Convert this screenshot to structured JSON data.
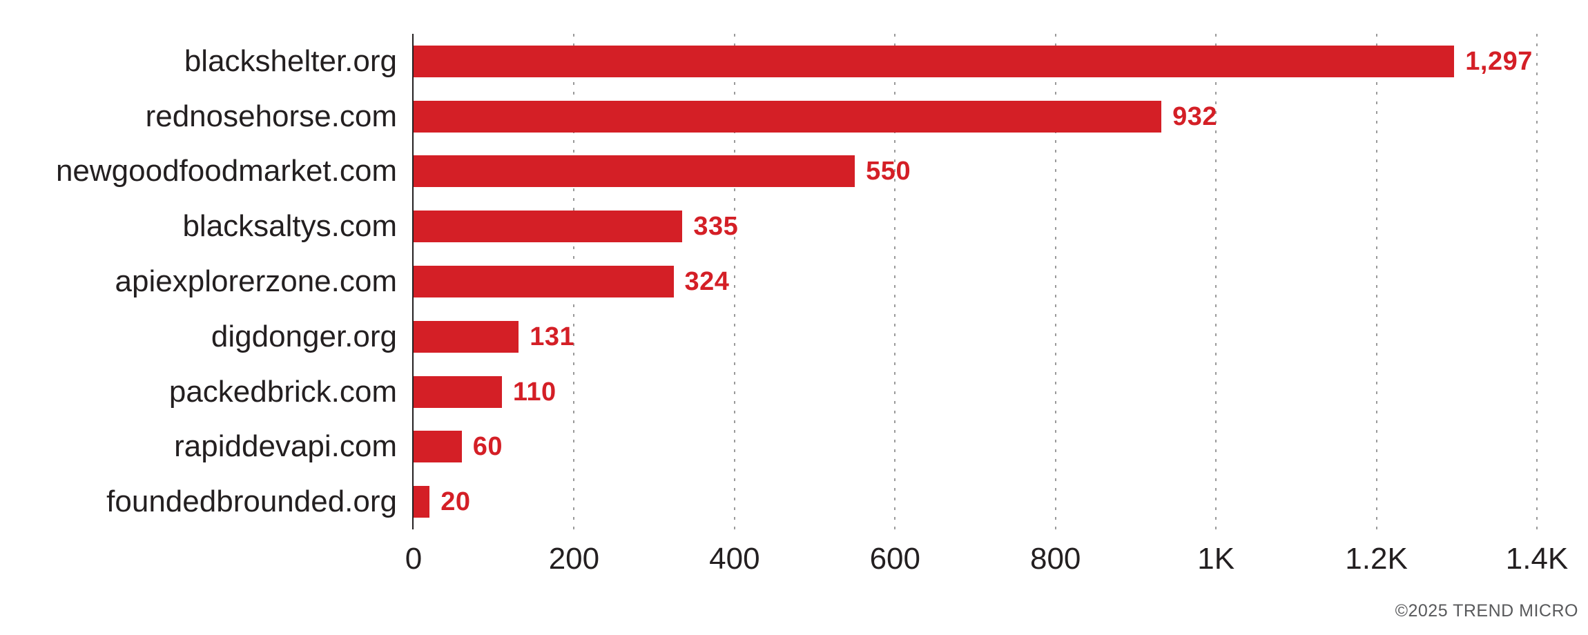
{
  "chart_data": {
    "type": "bar",
    "orientation": "horizontal",
    "title": "",
    "xlabel": "",
    "ylabel": "",
    "categories": [
      "blackshelter.org",
      "rednosehorse.com",
      "newgoodfoodmarket.com",
      "blacksaltys.com",
      "apiexplorerzone.com",
      "digdonger.org",
      "packedbrick.com",
      "rapiddevapi.com",
      "foundedbrounded.org"
    ],
    "values": [
      1297,
      932,
      550,
      335,
      324,
      131,
      110,
      60,
      20
    ],
    "value_labels": [
      "1,297",
      "932",
      "550",
      "335",
      "324",
      "131",
      "110",
      "60",
      "20"
    ],
    "xlim": [
      0,
      1400
    ],
    "x_ticks": [
      {
        "value": 0,
        "label": "0"
      },
      {
        "value": 200,
        "label": "200"
      },
      {
        "value": 400,
        "label": "400"
      },
      {
        "value": 600,
        "label": "600"
      },
      {
        "value": 800,
        "label": "800"
      },
      {
        "value": 1000,
        "label": "1K"
      },
      {
        "value": 1200,
        "label": "1.2K"
      },
      {
        "value": 1400,
        "label": "1.4K"
      }
    ],
    "grid": {
      "vertical_dashed_at_ticks": true,
      "horizontal": false
    },
    "legend": "none",
    "colors": {
      "bar": "#d41f26",
      "value_label": "#d41f26",
      "category_label": "#231f20",
      "tick_label": "#231f20",
      "axis_line": "#231f20",
      "gridline": "#9a9a9a"
    }
  },
  "footer": {
    "copyright": "©2025 TREND MICRO",
    "color": "#58595b"
  }
}
